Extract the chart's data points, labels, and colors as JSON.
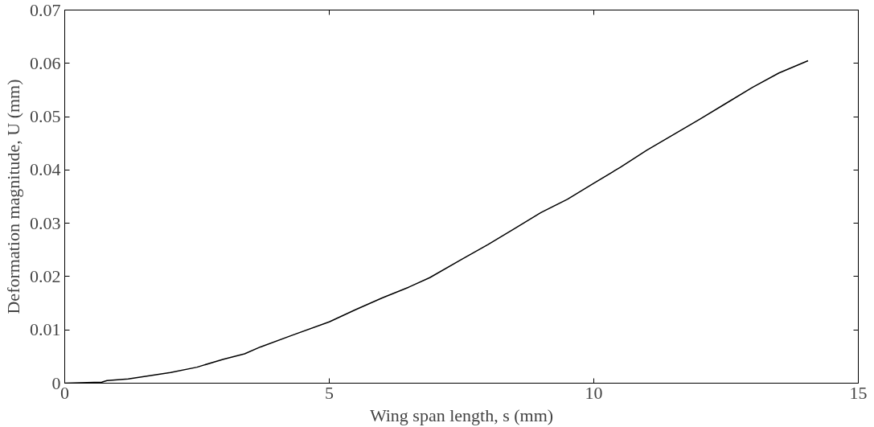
{
  "chart_data": {
    "type": "line",
    "xlabel": "Wing span length, s (mm)",
    "ylabel": "Deformation magnitude, U (mm)",
    "xlim": [
      0,
      15
    ],
    "xticks": [
      0,
      5,
      10,
      15
    ],
    "ylim": [
      0,
      0.07
    ],
    "yticks": [
      0,
      0.01,
      0.02,
      0.03,
      0.04,
      0.05,
      0.06,
      0.07
    ],
    "grid": false,
    "line_style": "solid",
    "series": [
      {
        "color": "#000000",
        "x": [
          0,
          0.7,
          0.8,
          1.2,
          2,
          2.5,
          3,
          3.4,
          3.7,
          4.3,
          5,
          5.5,
          6,
          6.5,
          6.9,
          7.5,
          8,
          8.5,
          9,
          9.5,
          10,
          10.5,
          11,
          11.5,
          12,
          12.5,
          13,
          13.5,
          14.05
        ],
        "values": [
          0,
          0.0002,
          0.0005,
          0.0008,
          0.002,
          0.003,
          0.0045,
          0.0055,
          0.0068,
          0.009,
          0.0115,
          0.0138,
          0.016,
          0.018,
          0.0198,
          0.0232,
          0.026,
          0.029,
          0.032,
          0.0345,
          0.0375,
          0.0405,
          0.0437,
          0.0466,
          0.0495,
          0.0525,
          0.0555,
          0.0582,
          0.0605
        ]
      }
    ]
  }
}
